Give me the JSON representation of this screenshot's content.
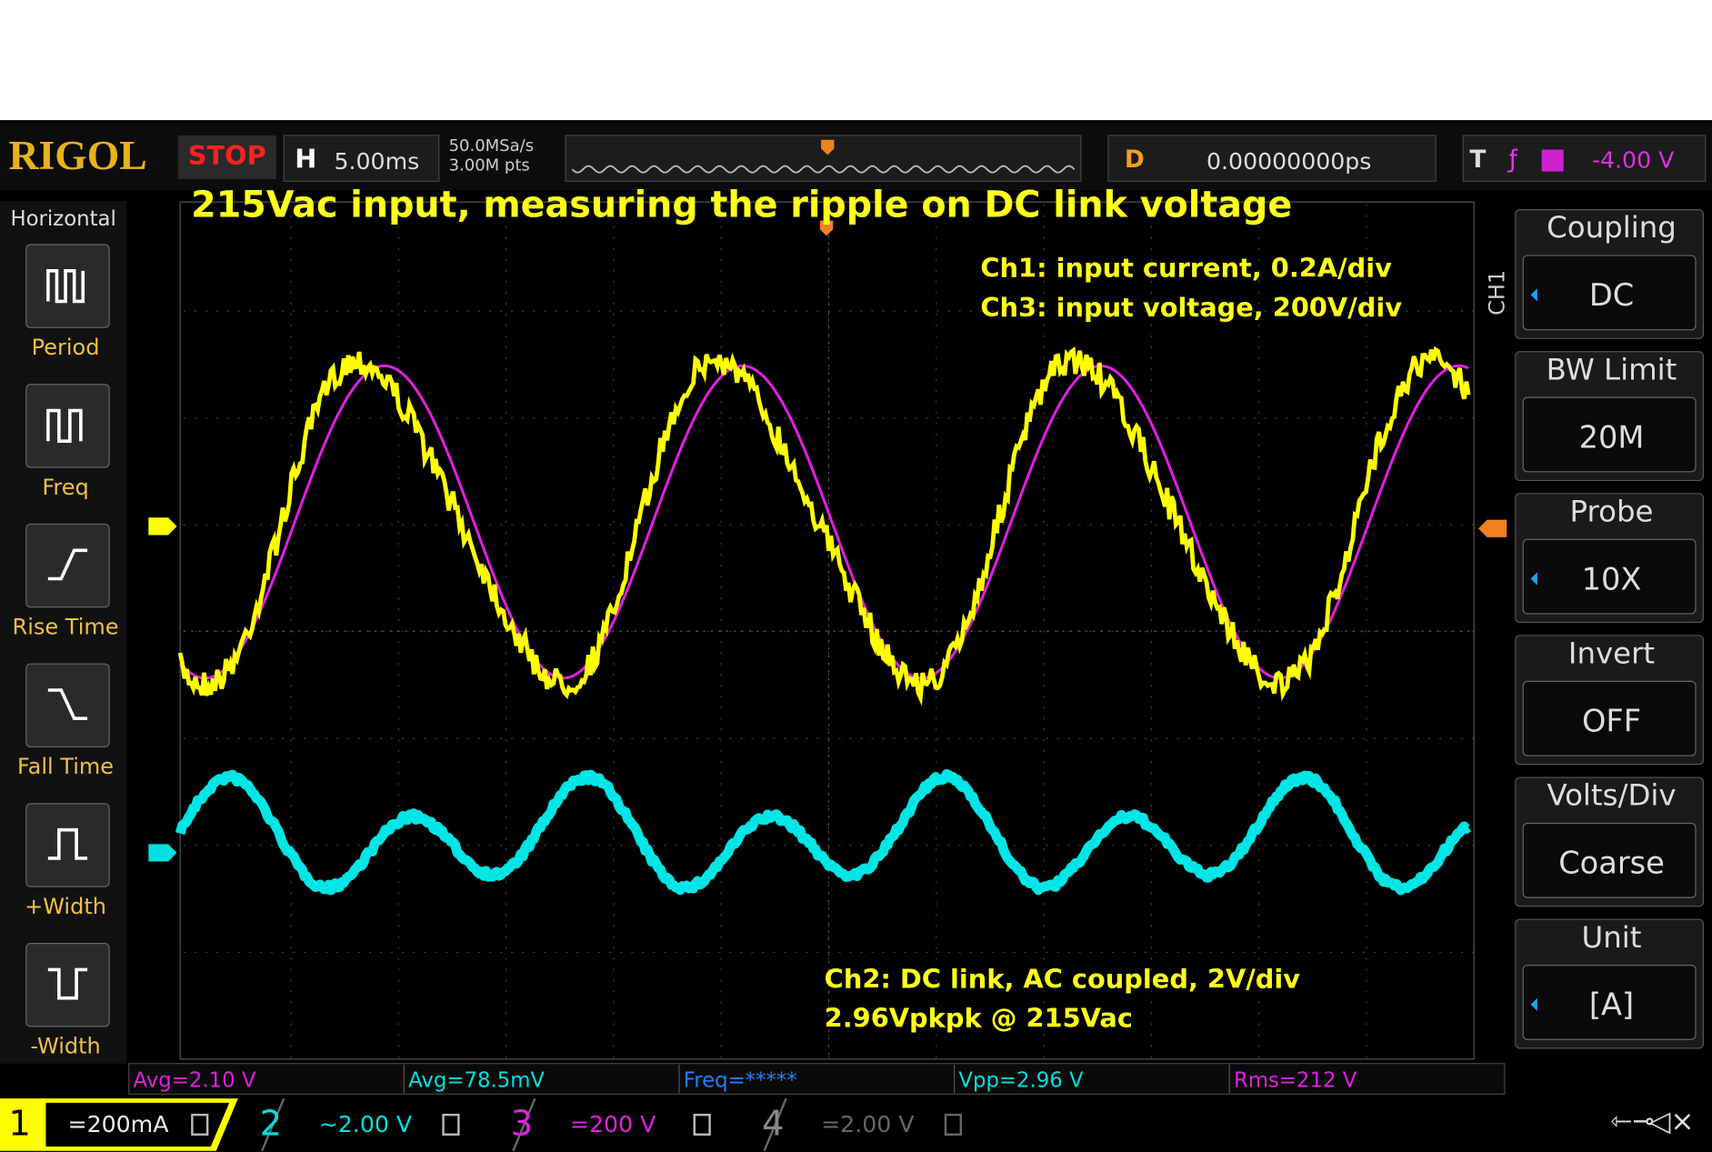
{
  "header": {
    "brand": "RIGOL",
    "run_state": "STOP",
    "horizontal_key": "H",
    "timebase": "5.00ms",
    "sample_rate": "50.0MSa/s",
    "memory_depth": "3.00M pts",
    "delay_key": "D",
    "delay": "0.00000000ps",
    "trigger_key": "T",
    "trigger_level": "-4.00 V"
  },
  "left_menu": {
    "title": "Horizontal",
    "items": [
      "Period",
      "Freq",
      "Rise Time",
      "Fall Time",
      "+Width",
      "-Width"
    ]
  },
  "annotations": {
    "title": "215Vac input,  measuring the ripple on DC link voltage",
    "ch1": "Ch1: input current, 0.2A/div",
    "ch3": "Ch3: input voltage, 200V/div",
    "ch2": "Ch2: DC link, AC coupled, 2V/div",
    "ripple": "2.96Vpkpk @ 215Vac"
  },
  "right_menu": {
    "channel": "CH1",
    "items": [
      {
        "label": "Coupling",
        "value": "DC"
      },
      {
        "label": "BW Limit",
        "value": "20M"
      },
      {
        "label": "Probe",
        "value": "10X"
      },
      {
        "label": "Invert",
        "value": "OFF"
      },
      {
        "label": "Volts/Div",
        "value": "Coarse"
      },
      {
        "label": "Unit",
        "value": "[A]"
      }
    ]
  },
  "measurements": [
    "Avg=2.10 V",
    "Avg=78.5mV",
    "Freq=*****",
    "Vpp=2.96 V",
    "Rms=212 V"
  ],
  "channels": [
    {
      "number": "1",
      "scale": "=200mA"
    },
    {
      "number": "2",
      "scale": "~2.00 V"
    },
    {
      "number": "3",
      "scale": "=200 V"
    },
    {
      "number": "4",
      "scale": "=2.00 V"
    }
  ]
}
